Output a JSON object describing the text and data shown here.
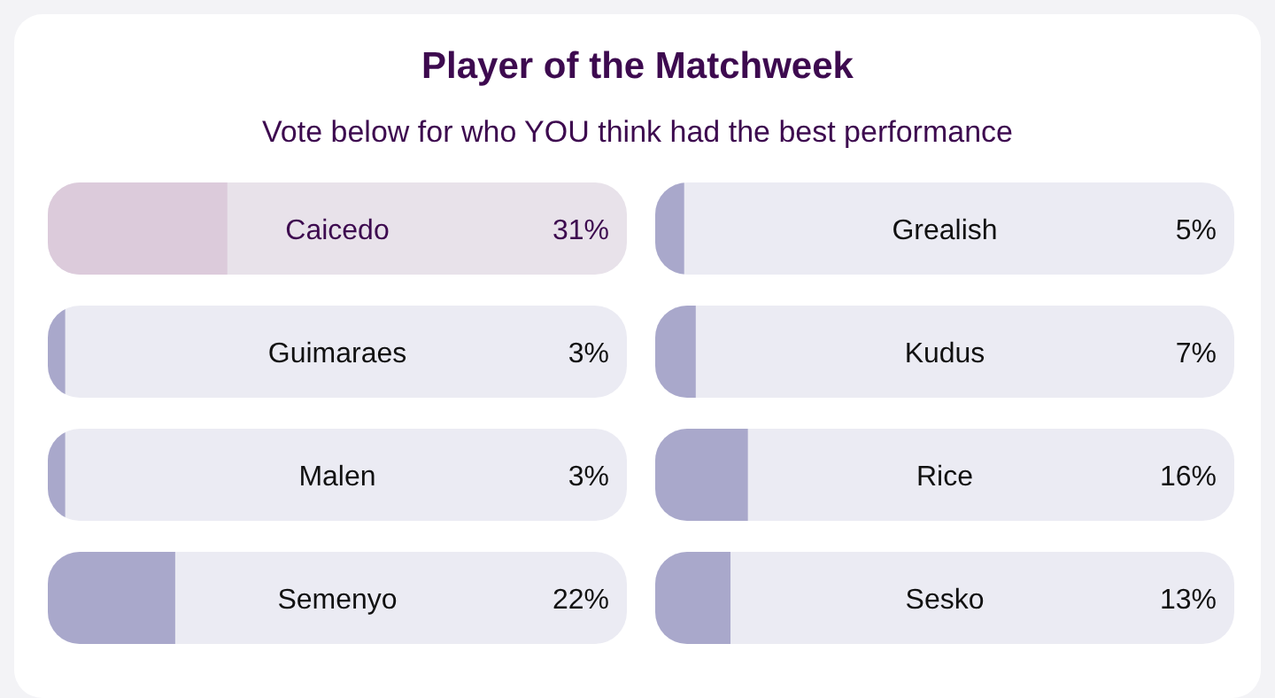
{
  "chart_data": [
    {
      "type": "bar",
      "orientation": "horizontal",
      "title": "Player of the Matchweek",
      "subtitle": "Vote below for who YOU think had the best performance",
      "categories": [
        "Caicedo",
        "Guimaraes",
        "Malen",
        "Semenyo"
      ],
      "values": [
        31,
        3,
        3,
        22
      ],
      "value_labels": [
        "31%",
        "3%",
        "3%",
        "22%"
      ],
      "colors": [
        "#dccbdb",
        "#a9a8cb",
        "#a9a8cb",
        "#a9a8cb"
      ],
      "xlim": [
        0,
        100
      ]
    },
    {
      "type": "bar",
      "orientation": "horizontal",
      "categories": [
        "Grealish",
        "Kudus",
        "Rice",
        "Sesko"
      ],
      "values": [
        5,
        7,
        16,
        13
      ],
      "value_labels": [
        "5%",
        "7%",
        "16%",
        "13%"
      ],
      "colors": [
        "#a9a8cb",
        "#a9a8cb",
        "#a9a8cb",
        "#a9a8cb"
      ],
      "xlim": [
        0,
        100
      ]
    }
  ]
}
